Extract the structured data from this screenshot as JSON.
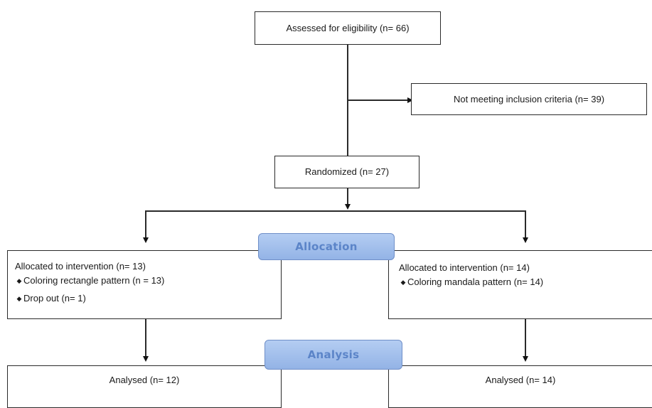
{
  "nodes": {
    "assessed": "Assessed for eligibility (n= 66)",
    "excluded": "Not meeting inclusion criteria (n= 39)",
    "randomized": "Randomized (n= 27)",
    "left_allocation": {
      "title": "Allocated to intervention (n= 13)",
      "items": [
        "Coloring rectangle pattern (n = 13)",
        "Drop out (n= 1)"
      ]
    },
    "right_allocation": {
      "title": "Allocated to intervention (n= 14)",
      "items": [
        "Coloring mandala pattern (n= 14)"
      ]
    },
    "left_analysis": "Analysed (n= 12)",
    "right_analysis": "Analysed (n= 14)"
  },
  "stages": {
    "allocation": "Allocation",
    "analysis": "Analysis"
  },
  "bullet_glyph": "◆",
  "colors": {
    "stage_fill": "#a7c2ee",
    "stage_text": "#5b84c8",
    "border": "#2a2a2a"
  }
}
